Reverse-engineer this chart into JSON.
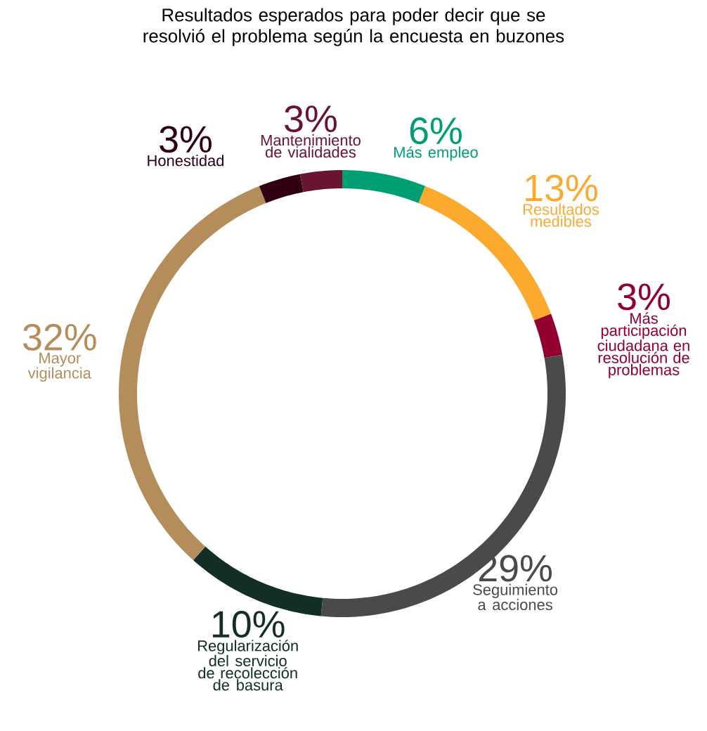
{
  "chart_data": {
    "type": "donut",
    "title": "Resultados esperados para poder decir que se resolvió el problema según la encuesta en buzones",
    "categories": [
      "Más empleo",
      "Resultados medibles",
      "Más participación ciudadana en resolución de problemas",
      "Seguimiento a acciones",
      "Regularización del servicio de recolección de basura",
      "Mayor vigilancia",
      "Honestidad",
      "Mantenimiento de vialidades"
    ],
    "values": [
      6,
      13,
      3,
      29,
      10,
      32,
      3,
      3
    ],
    "value_labels": [
      "6%",
      "13%",
      "3%",
      "29%",
      "10%",
      "32%",
      "3%",
      "3%"
    ],
    "colors": [
      "#009e73",
      "#fbaa2e",
      "#930030",
      "#4a4a4a",
      "#132e24",
      "#b58d5a",
      "#300010",
      "#6a1530"
    ]
  }
}
